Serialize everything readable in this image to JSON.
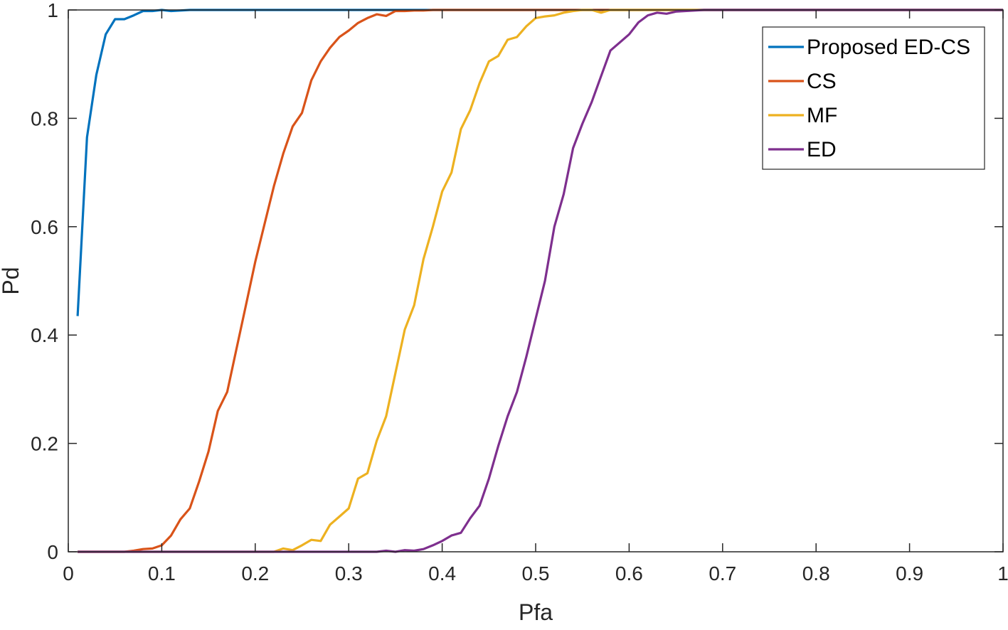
{
  "chart_data": {
    "type": "line",
    "title": "",
    "xlabel": "Pfa",
    "ylabel": "Pd",
    "xlim": [
      0,
      1
    ],
    "ylim": [
      0,
      1
    ],
    "xticks": [
      0,
      0.1,
      0.2,
      0.3,
      0.4,
      0.5,
      0.6,
      0.7,
      0.8,
      0.9,
      1
    ],
    "xtick_labels": [
      "0",
      "0.1",
      "0.2",
      "0.3",
      "0.4",
      "0.5",
      "0.6",
      "0.7",
      "0.8",
      "0.9",
      "1"
    ],
    "yticks": [
      0,
      0.2,
      0.4,
      0.6,
      0.8,
      1
    ],
    "ytick_labels": [
      "0",
      "0.2",
      "0.4",
      "0.6",
      "0.8",
      "1"
    ],
    "grid": false,
    "box": true,
    "legend_position": "top-right",
    "series": [
      {
        "name": "Proposed ED-CS",
        "color": "#0072BD",
        "x": [
          0.01,
          0.02,
          0.03,
          0.04,
          0.05,
          0.06,
          0.07,
          0.08,
          0.09,
          0.1,
          0.11,
          0.12,
          0.13,
          0.2,
          0.3,
          0.4,
          0.5,
          0.6,
          0.7,
          0.8,
          0.9,
          1.0
        ],
        "y": [
          0.435,
          0.765,
          0.88,
          0.955,
          0.983,
          0.983,
          0.99,
          0.998,
          0.998,
          1.0,
          0.998,
          0.999,
          1.0,
          1.0,
          1.0,
          1.0,
          1.0,
          1.0,
          1.0,
          1.0,
          1.0,
          1.0
        ]
      },
      {
        "name": "CS",
        "color": "#D95319",
        "x": [
          0.01,
          0.06,
          0.07,
          0.08,
          0.09,
          0.1,
          0.11,
          0.12,
          0.13,
          0.14,
          0.15,
          0.16,
          0.17,
          0.18,
          0.19,
          0.2,
          0.21,
          0.22,
          0.23,
          0.24,
          0.25,
          0.26,
          0.27,
          0.28,
          0.29,
          0.3,
          0.31,
          0.32,
          0.33,
          0.34,
          0.35,
          0.36,
          0.37,
          0.38,
          0.39,
          0.4,
          0.42,
          0.45,
          0.5,
          0.6,
          0.7,
          0.8,
          0.9,
          1.0
        ],
        "y": [
          0.0,
          0.0,
          0.002,
          0.005,
          0.006,
          0.012,
          0.03,
          0.06,
          0.08,
          0.13,
          0.185,
          0.26,
          0.295,
          0.375,
          0.455,
          0.535,
          0.605,
          0.675,
          0.735,
          0.785,
          0.81,
          0.87,
          0.905,
          0.93,
          0.95,
          0.962,
          0.976,
          0.985,
          0.992,
          0.989,
          0.998,
          0.998,
          0.999,
          0.999,
          1.0,
          1.0,
          1.0,
          1.0,
          1.0,
          1.0,
          1.0,
          1.0,
          1.0,
          1.0
        ]
      },
      {
        "name": "MF",
        "color": "#EDB120",
        "x": [
          0.01,
          0.22,
          0.23,
          0.24,
          0.25,
          0.26,
          0.27,
          0.28,
          0.29,
          0.3,
          0.31,
          0.32,
          0.33,
          0.34,
          0.35,
          0.36,
          0.37,
          0.38,
          0.39,
          0.4,
          0.41,
          0.42,
          0.43,
          0.44,
          0.45,
          0.46,
          0.47,
          0.48,
          0.49,
          0.5,
          0.51,
          0.52,
          0.53,
          0.54,
          0.55,
          0.56,
          0.57,
          0.58,
          0.6,
          0.7,
          0.8,
          0.9,
          1.0
        ],
        "y": [
          0.0,
          0.0,
          0.006,
          0.003,
          0.012,
          0.022,
          0.02,
          0.05,
          0.065,
          0.08,
          0.135,
          0.145,
          0.205,
          0.25,
          0.33,
          0.41,
          0.455,
          0.54,
          0.6,
          0.665,
          0.7,
          0.78,
          0.815,
          0.865,
          0.905,
          0.915,
          0.945,
          0.95,
          0.97,
          0.985,
          0.988,
          0.99,
          0.995,
          0.998,
          1.0,
          1.0,
          0.995,
          1.0,
          1.0,
          1.0,
          1.0,
          1.0,
          1.0
        ]
      },
      {
        "name": "ED",
        "color": "#7E2F8E",
        "x": [
          0.01,
          0.33,
          0.34,
          0.35,
          0.36,
          0.37,
          0.38,
          0.39,
          0.4,
          0.41,
          0.42,
          0.43,
          0.44,
          0.45,
          0.46,
          0.47,
          0.48,
          0.49,
          0.5,
          0.51,
          0.52,
          0.53,
          0.54,
          0.55,
          0.56,
          0.57,
          0.58,
          0.59,
          0.6,
          0.61,
          0.62,
          0.63,
          0.64,
          0.65,
          0.66,
          0.67,
          0.68,
          0.7,
          0.8,
          0.9,
          1.0
        ],
        "y": [
          0.0,
          0.0,
          0.002,
          0.0,
          0.003,
          0.002,
          0.005,
          0.012,
          0.02,
          0.03,
          0.035,
          0.062,
          0.085,
          0.135,
          0.195,
          0.25,
          0.295,
          0.36,
          0.43,
          0.5,
          0.6,
          0.66,
          0.745,
          0.79,
          0.83,
          0.878,
          0.925,
          0.94,
          0.955,
          0.977,
          0.99,
          0.995,
          0.993,
          0.997,
          0.998,
          0.999,
          1.0,
          1.0,
          1.0,
          1.0,
          1.0
        ]
      }
    ]
  }
}
